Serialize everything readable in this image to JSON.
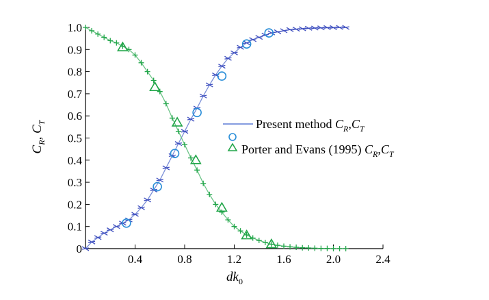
{
  "chart_data": {
    "type": "line",
    "xlabel": "dk",
    "xlabel_sub": "0",
    "ylabel_parts": [
      "C",
      "R",
      ", C",
      "T"
    ],
    "xlim": [
      0,
      2.4
    ],
    "ylim": [
      0,
      1.0
    ],
    "xticks": [
      0.4,
      0.8,
      1.2,
      1.6,
      2.0,
      2.4
    ],
    "xtick_labels": [
      "0.4",
      "0.8",
      "1.2",
      "1.6",
      "2.0",
      "2.4"
    ],
    "yticks": [
      0,
      0.1,
      0.2,
      0.3,
      0.4,
      0.5,
      0.6,
      0.7,
      0.8,
      0.9,
      1.0
    ],
    "ytick_labels": [
      "0",
      "0.1",
      "0.2",
      "0.3",
      "0.4",
      "0.5",
      "0.6",
      "0.7",
      "0.8",
      "0.9",
      "1.0"
    ],
    "grid": false,
    "legend_position": "center-right",
    "colors": {
      "CR": "#3f4fbf",
      "CT": "#22a64a"
    },
    "legend": [
      {
        "marker": "line",
        "color": "#5b7bd5",
        "label_main": "Present method ",
        "label_math": [
          [
            "C",
            "R"
          ],
          [
            "C",
            "T"
          ]
        ]
      },
      {
        "marker": "circle",
        "color": "#2a8ed8",
        "label_main": "",
        "label_math": []
      },
      {
        "marker": "triangle",
        "color": "#22a64a",
        "label_main": "Porter and Evans (1995) ",
        "label_math": [
          [
            "C",
            "R"
          ],
          [
            "C",
            "T"
          ]
        ]
      }
    ],
    "series": [
      {
        "key": "CR_present",
        "x": [
          0.0,
          0.05,
          0.1,
          0.15,
          0.2,
          0.25,
          0.3,
          0.35,
          0.4,
          0.45,
          0.5,
          0.55,
          0.6,
          0.65,
          0.7,
          0.75,
          0.8,
          0.85,
          0.9,
          0.95,
          1.0,
          1.05,
          1.1,
          1.15,
          1.2,
          1.25,
          1.3,
          1.35,
          1.4,
          1.45,
          1.5,
          1.55,
          1.6,
          1.65,
          1.7,
          1.75,
          1.8,
          1.85,
          1.9,
          1.95,
          2.0,
          2.05,
          2.1
        ],
        "y": [
          0.0,
          0.03,
          0.05,
          0.07,
          0.085,
          0.1,
          0.115,
          0.13,
          0.155,
          0.185,
          0.22,
          0.265,
          0.31,
          0.365,
          0.42,
          0.475,
          0.53,
          0.585,
          0.635,
          0.69,
          0.74,
          0.785,
          0.825,
          0.86,
          0.885,
          0.91,
          0.93,
          0.945,
          0.955,
          0.965,
          0.975,
          0.98,
          0.985,
          0.99,
          0.992,
          0.994,
          0.996,
          0.997,
          0.998,
          0.999,
          0.999,
          1.0,
          1.0
        ]
      },
      {
        "key": "CT_present",
        "x": [
          0.0,
          0.05,
          0.1,
          0.15,
          0.2,
          0.25,
          0.3,
          0.35,
          0.4,
          0.45,
          0.5,
          0.55,
          0.6,
          0.65,
          0.7,
          0.75,
          0.8,
          0.85,
          0.9,
          0.95,
          1.0,
          1.05,
          1.1,
          1.15,
          1.2,
          1.25,
          1.3,
          1.35,
          1.4,
          1.45,
          1.5,
          1.55,
          1.6,
          1.65,
          1.7,
          1.75,
          1.8,
          1.85,
          1.9,
          1.95,
          2.0,
          2.05,
          2.1
        ],
        "y": [
          1.0,
          0.985,
          0.97,
          0.955,
          0.94,
          0.93,
          0.915,
          0.9,
          0.875,
          0.84,
          0.8,
          0.76,
          0.71,
          0.655,
          0.59,
          0.53,
          0.47,
          0.41,
          0.355,
          0.295,
          0.245,
          0.2,
          0.165,
          0.13,
          0.1,
          0.08,
          0.062,
          0.048,
          0.037,
          0.028,
          0.02,
          0.015,
          0.011,
          0.008,
          0.006,
          0.004,
          0.003,
          0.002,
          0.001,
          0.001,
          0.0,
          0.0,
          0.0
        ]
      },
      {
        "key": "CR_porter",
        "marker": "circle",
        "x": [
          0.33,
          0.58,
          0.72,
          0.9,
          1.1,
          1.3,
          1.48
        ],
        "y": [
          0.115,
          0.28,
          0.43,
          0.615,
          0.78,
          0.925,
          0.975
        ]
      },
      {
        "key": "CT_porter",
        "marker": "triangle",
        "x": [
          0.3,
          0.56,
          0.74,
          0.89,
          1.1,
          1.3,
          1.5
        ],
        "y": [
          0.91,
          0.73,
          0.57,
          0.4,
          0.185,
          0.06,
          0.02
        ]
      }
    ]
  }
}
